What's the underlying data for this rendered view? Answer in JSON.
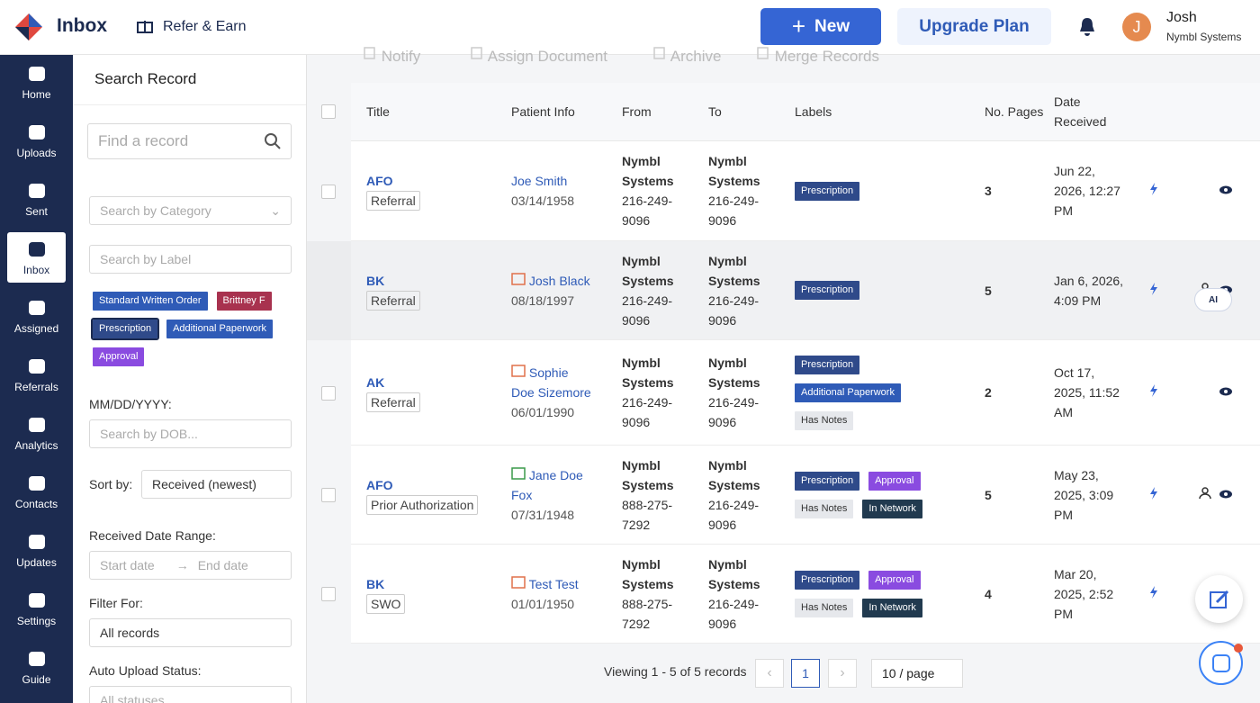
{
  "header": {
    "title": "Inbox",
    "refer": "Refer & Earn",
    "new_button": "New",
    "upgrade_button": "Upgrade Plan",
    "avatar": "J",
    "user_name": "Josh",
    "user_org": "Nymbl Systems"
  },
  "sidebar": {
    "items": [
      "Home",
      "Uploads",
      "Sent",
      "Inbox",
      "Assigned",
      "Referrals",
      "Analytics",
      "Contacts",
      "Updates",
      "Settings",
      "Guide"
    ],
    "active": 3
  },
  "filters": {
    "title": "Search Record",
    "search_placeholder": "Find a record",
    "category_placeholder": "Search by Category",
    "label_placeholder": "Search by Label",
    "labels": [
      {
        "text": "Standard Written Order",
        "color": "#2f5bb7"
      },
      {
        "text": "Brittney F",
        "color": "#a8324f"
      },
      {
        "text": "Prescription",
        "color": "#2f4a8a"
      },
      {
        "text": "Additional Paperwork",
        "color": "#2f5bb7"
      },
      {
        "text": "Approval",
        "color": "#8a4be0"
      }
    ],
    "dob_label": "MM/DD/YYYY:",
    "dob_placeholder": "Search by DOB...",
    "sort_label": "Sort by:",
    "sort_value": "Received (newest)",
    "range_label": "Received Date Range:",
    "start_placeholder": "Start date",
    "end_placeholder": "End date",
    "filter_for_label": "Filter For:",
    "filter_for_value": "All records",
    "auto_upload_label": "Auto Upload Status:",
    "auto_upload_placeholder": "All statuses"
  },
  "toolbar": [
    "Notify",
    "Assign Document",
    "Archive",
    "Merge Records"
  ],
  "table": {
    "columns": [
      "Title",
      "Patient Info",
      "From",
      "To",
      "Labels",
      "No. Pages",
      "Date Received"
    ],
    "rows": [
      {
        "code": "AFO",
        "type": "Referral",
        "patient": "Joe Smith",
        "dob": "03/14/1958",
        "from": {
          "name": "Nymbl Systems",
          "phone": "216-249-9096"
        },
        "to": {
          "name": "Nymbl Systems",
          "phone": "216-249-9096"
        },
        "labels": [
          {
            "text": "Prescription",
            "color": "#2f4a8a"
          }
        ],
        "pages": 3,
        "date": "Jun 22, 2026, 12:27 PM"
      },
      {
        "code": "BK",
        "type": "Referral",
        "patient": "Josh Black",
        "dob": "08/18/1997",
        "from": {
          "name": "Nymbl Systems",
          "phone": "216-249-9096"
        },
        "to": {
          "name": "Nymbl Systems",
          "phone": "216-249-9096"
        },
        "labels": [
          {
            "text": "Prescription",
            "color": "#2f4a8a"
          }
        ],
        "pages": 5,
        "date": "Jan 6, 2026, 4:09 PM"
      },
      {
        "code": "AK",
        "type": "Referral",
        "patient": "Sophie Doe Sizemore",
        "dob": "06/01/1990",
        "from": {
          "name": "Nymbl Systems",
          "phone": "216-249-9096"
        },
        "to": {
          "name": "Nymbl Systems",
          "phone": "216-249-9096"
        },
        "labels": [
          {
            "text": "Prescription",
            "color": "#2f4a8a"
          },
          {
            "text": "Additional Paperwork",
            "color": "#2f5bb7"
          },
          {
            "text": "Has Notes",
            "color": "#e6e8ec"
          }
        ],
        "pages": 2,
        "date": "Oct 17, 2025, 11:52 AM"
      },
      {
        "code": "AFO",
        "type": "Prior Authorization",
        "patient": "Jane Doe Fox",
        "dob": "07/31/1948",
        "from": {
          "name": "Nymbl Systems",
          "phone": "888-275-7292"
        },
        "to": {
          "name": "Nymbl Systems",
          "phone": "216-249-9096"
        },
        "labels": [
          {
            "text": "Prescription",
            "color": "#2f4a8a"
          },
          {
            "text": "Approval",
            "color": "#8a4be0"
          },
          {
            "text": "Has Notes",
            "color": "#e6e8ec"
          },
          {
            "text": "In Network",
            "color": "#213a4f"
          }
        ],
        "pages": 5,
        "date": "May 23, 2025, 3:09 PM"
      },
      {
        "code": "BK",
        "type": "SWO",
        "patient": "Test Test",
        "dob": "01/01/1950",
        "from": {
          "name": "Nymbl Systems",
          "phone": "888-275-7292"
        },
        "to": {
          "name": "Nymbl Systems",
          "phone": "216-249-9096"
        },
        "labels": [
          {
            "text": "Prescription",
            "color": "#2f4a8a"
          },
          {
            "text": "Approval",
            "color": "#8a4be0"
          },
          {
            "text": "Has Notes",
            "color": "#e6e8ec"
          },
          {
            "text": "In Network",
            "color": "#213a4f"
          }
        ],
        "pages": 4,
        "date": "Mar 20, 2025, 2:52 PM"
      }
    ]
  },
  "ai_chip": "AI",
  "pagination": {
    "summary": "Viewing 1 - 5 of 5 records",
    "page": "1",
    "page_size": "10 / page"
  }
}
